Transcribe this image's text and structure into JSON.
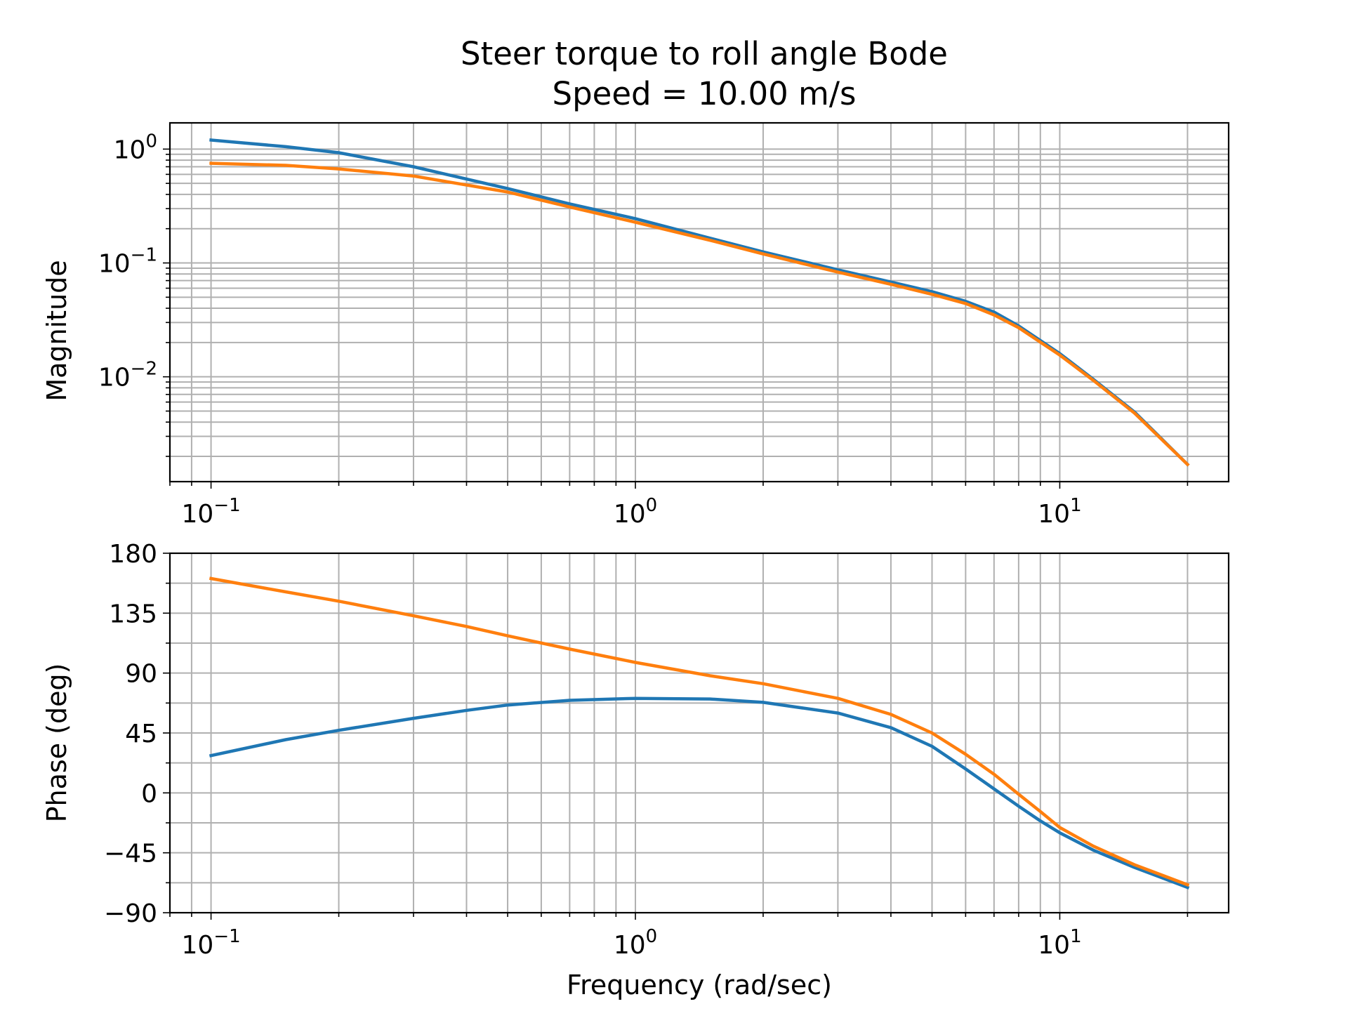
{
  "chart_data": [
    {
      "type": "line",
      "title": "Steer torque to roll angle Bode",
      "subtitle": "Speed = 10.00 m/s",
      "xlabel": "",
      "ylabel": "Magnitude",
      "xscale": "log",
      "yscale": "log",
      "xlim": [
        0.08,
        25
      ],
      "ylim": [
        0.0012,
        1.7
      ],
      "grid": true,
      "x_ticks": [
        {
          "value": 0.1,
          "base": "10",
          "exp": "−1"
        },
        {
          "value": 1,
          "base": "10",
          "exp": "0"
        },
        {
          "value": 10,
          "base": "10",
          "exp": "1"
        }
      ],
      "y_ticks": [
        {
          "value": 1,
          "base": "10",
          "exp": "0"
        },
        {
          "value": 0.1,
          "base": "10",
          "exp": "−1"
        },
        {
          "value": 0.01,
          "base": "10",
          "exp": "−2"
        }
      ],
      "x": [
        0.1,
        0.15,
        0.2,
        0.3,
        0.5,
        0.7,
        1.0,
        1.5,
        2.0,
        3.0,
        4.0,
        5.0,
        6.0,
        7.0,
        8.0,
        10.0,
        12.0,
        15.0,
        20.0
      ],
      "series": [
        {
          "color": "#1f77b4",
          "values": [
            1.2,
            1.05,
            0.93,
            0.7,
            0.45,
            0.33,
            0.245,
            0.165,
            0.125,
            0.087,
            0.068,
            0.056,
            0.046,
            0.037,
            0.028,
            0.016,
            0.0095,
            0.0049,
            0.0017
          ]
        },
        {
          "color": "#ff7f0e",
          "values": [
            0.75,
            0.72,
            0.67,
            0.58,
            0.42,
            0.31,
            0.228,
            0.158,
            0.12,
            0.083,
            0.065,
            0.053,
            0.044,
            0.035,
            0.027,
            0.0155,
            0.0093,
            0.0048,
            0.0017
          ]
        }
      ]
    },
    {
      "type": "line",
      "title": "",
      "xlabel": "Frequency (rad/sec)",
      "ylabel": "Phase (deg)",
      "xscale": "log",
      "yscale": "linear",
      "xlim": [
        0.08,
        25
      ],
      "ylim": [
        -90,
        180
      ],
      "grid": true,
      "x_ticks": [
        {
          "value": 0.1,
          "base": "10",
          "exp": "−1"
        },
        {
          "value": 1,
          "base": "10",
          "exp": "0"
        },
        {
          "value": 10,
          "base": "10",
          "exp": "1"
        }
      ],
      "y_ticks": [
        {
          "value": 180,
          "label": "180"
        },
        {
          "value": 135,
          "label": "135"
        },
        {
          "value": 90,
          "label": "90"
        },
        {
          "value": 45,
          "label": "45"
        },
        {
          "value": 0,
          "label": "0"
        },
        {
          "value": -45,
          "label": "−45"
        },
        {
          "value": -90,
          "label": "−90"
        }
      ],
      "x": [
        0.1,
        0.15,
        0.2,
        0.3,
        0.4,
        0.5,
        0.7,
        1.0,
        1.5,
        2.0,
        3.0,
        4.0,
        5.0,
        6.0,
        7.0,
        8.0,
        9.0,
        10.0,
        12.0,
        15.0,
        20.0
      ],
      "series": [
        {
          "color": "#1f77b4",
          "values": [
            28,
            40,
            47,
            56,
            62,
            66,
            69.5,
            71,
            70.5,
            68,
            60,
            49,
            35,
            18,
            3,
            -10,
            -21,
            -30,
            -43,
            -56,
            -71
          ]
        },
        {
          "color": "#ff7f0e",
          "values": [
            161,
            151,
            144,
            133,
            125,
            118,
            108,
            98,
            88,
            82,
            71,
            59,
            45,
            29,
            14,
            -1,
            -14,
            -26,
            -40,
            -54,
            -69
          ]
        }
      ]
    }
  ]
}
